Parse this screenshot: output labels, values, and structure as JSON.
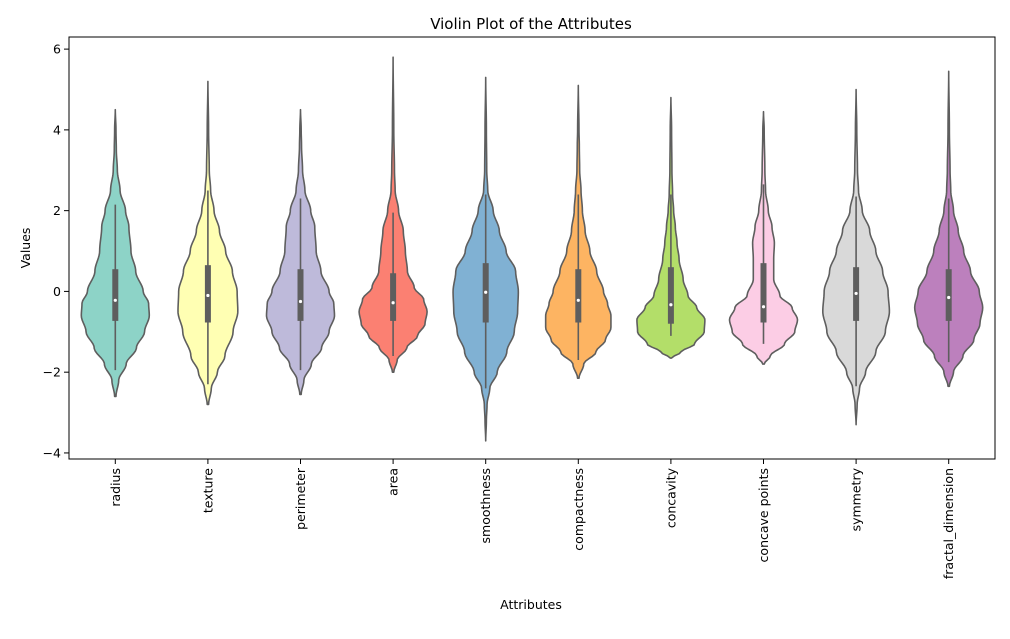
{
  "chart_data": {
    "type": "violin",
    "title": "Violin Plot of the Attributes",
    "xlabel": "Attributes",
    "ylabel": "Values",
    "ylim": [
      -4.15,
      6.3
    ],
    "yticks": [
      -4,
      -2,
      0,
      2,
      4,
      6
    ],
    "grid": false,
    "legend": "none",
    "edge_color": "#5e5e5e",
    "categories": [
      "radius",
      "texture",
      "perimeter",
      "area",
      "smoothness",
      "compactness",
      "concavity",
      "concave points",
      "symmetry",
      "fractal_dimension"
    ],
    "colors": [
      "#8dd3c7",
      "#ffffb3",
      "#bebada",
      "#fb8072",
      "#80b1d3",
      "#fdb462",
      "#b3de69",
      "#fccde5",
      "#d9d9d9",
      "#bc80bd"
    ],
    "series": [
      {
        "min": -2.6,
        "q1": -0.73,
        "median": -0.22,
        "q3": 0.55,
        "max": 4.5,
        "whisker_low": -1.95,
        "whisker_high": 2.15,
        "profile": [
          [
            -2.6,
            0.02
          ],
          [
            -2.2,
            0.1
          ],
          [
            -1.8,
            0.32
          ],
          [
            -1.4,
            0.62
          ],
          [
            -1.0,
            0.86
          ],
          [
            -0.6,
            1.0
          ],
          [
            -0.3,
            0.98
          ],
          [
            0.0,
            0.82
          ],
          [
            0.5,
            0.6
          ],
          [
            1.0,
            0.46
          ],
          [
            1.6,
            0.4
          ],
          [
            2.0,
            0.3
          ],
          [
            2.5,
            0.14
          ],
          [
            3.0,
            0.06
          ],
          [
            3.5,
            0.03
          ],
          [
            4.0,
            0.02
          ],
          [
            4.5,
            0.0
          ]
        ]
      },
      {
        "min": -2.8,
        "q1": -0.77,
        "median": -0.1,
        "q3": 0.65,
        "max": 5.2,
        "whisker_low": -2.3,
        "whisker_high": 2.5,
        "profile": [
          [
            -2.8,
            0.02
          ],
          [
            -2.4,
            0.1
          ],
          [
            -2.0,
            0.28
          ],
          [
            -1.6,
            0.5
          ],
          [
            -1.0,
            0.74
          ],
          [
            -0.5,
            0.88
          ],
          [
            0.0,
            0.86
          ],
          [
            0.5,
            0.72
          ],
          [
            1.0,
            0.52
          ],
          [
            1.5,
            0.34
          ],
          [
            2.0,
            0.18
          ],
          [
            2.5,
            0.08
          ],
          [
            3.0,
            0.04
          ],
          [
            4.0,
            0.02
          ],
          [
            5.2,
            0.0
          ]
        ]
      },
      {
        "min": -2.55,
        "q1": -0.73,
        "median": -0.25,
        "q3": 0.55,
        "max": 4.5,
        "whisker_low": -1.95,
        "whisker_high": 2.3,
        "profile": [
          [
            -2.55,
            0.02
          ],
          [
            -2.2,
            0.1
          ],
          [
            -1.8,
            0.32
          ],
          [
            -1.4,
            0.62
          ],
          [
            -1.0,
            0.84
          ],
          [
            -0.6,
            1.0
          ],
          [
            -0.3,
            0.98
          ],
          [
            0.0,
            0.84
          ],
          [
            0.5,
            0.6
          ],
          [
            1.0,
            0.46
          ],
          [
            1.6,
            0.42
          ],
          [
            2.0,
            0.3
          ],
          [
            2.5,
            0.13
          ],
          [
            3.0,
            0.06
          ],
          [
            3.6,
            0.03
          ],
          [
            4.0,
            0.02
          ],
          [
            4.5,
            0.0
          ]
        ]
      },
      {
        "min": -2.0,
        "q1": -0.73,
        "median": -0.28,
        "q3": 0.45,
        "max": 5.8,
        "whisker_low": -1.6,
        "whisker_high": 1.95,
        "profile": [
          [
            -2.0,
            0.02
          ],
          [
            -1.7,
            0.12
          ],
          [
            -1.4,
            0.4
          ],
          [
            -1.1,
            0.72
          ],
          [
            -0.8,
            0.94
          ],
          [
            -0.5,
            1.0
          ],
          [
            -0.2,
            0.9
          ],
          [
            0.1,
            0.62
          ],
          [
            0.5,
            0.42
          ],
          [
            1.0,
            0.36
          ],
          [
            1.5,
            0.3
          ],
          [
            2.0,
            0.16
          ],
          [
            2.5,
            0.06
          ],
          [
            3.0,
            0.04
          ],
          [
            4.0,
            0.02
          ],
          [
            5.8,
            0.0
          ]
        ]
      },
      {
        "min": -3.7,
        "q1": -0.77,
        "median": -0.02,
        "q3": 0.7,
        "max": 5.3,
        "whisker_low": -2.4,
        "whisker_high": 2.4,
        "profile": [
          [
            -3.7,
            0.0
          ],
          [
            -3.2,
            0.02
          ],
          [
            -2.8,
            0.04
          ],
          [
            -2.4,
            0.12
          ],
          [
            -2.0,
            0.34
          ],
          [
            -1.5,
            0.62
          ],
          [
            -1.0,
            0.84
          ],
          [
            -0.5,
            0.94
          ],
          [
            0.0,
            0.96
          ],
          [
            0.5,
            0.88
          ],
          [
            1.0,
            0.6
          ],
          [
            1.5,
            0.4
          ],
          [
            2.0,
            0.22
          ],
          [
            2.5,
            0.06
          ],
          [
            3.0,
            0.03
          ],
          [
            4.0,
            0.02
          ],
          [
            5.3,
            0.0
          ]
        ]
      },
      {
        "min": -2.15,
        "q1": -0.77,
        "median": -0.22,
        "q3": 0.55,
        "max": 5.1,
        "whisker_low": -1.7,
        "whisker_high": 2.4,
        "profile": [
          [
            -2.15,
            0.02
          ],
          [
            -1.8,
            0.16
          ],
          [
            -1.5,
            0.52
          ],
          [
            -1.2,
            0.8
          ],
          [
            -0.9,
            0.96
          ],
          [
            -0.6,
            0.96
          ],
          [
            -0.3,
            0.86
          ],
          [
            0.0,
            0.74
          ],
          [
            0.5,
            0.54
          ],
          [
            1.0,
            0.34
          ],
          [
            1.5,
            0.2
          ],
          [
            2.0,
            0.12
          ],
          [
            2.5,
            0.08
          ],
          [
            3.0,
            0.04
          ],
          [
            3.6,
            0.03
          ],
          [
            4.0,
            0.02
          ],
          [
            5.1,
            0.0
          ]
        ]
      },
      {
        "min": -1.65,
        "q1": -0.8,
        "median": -0.33,
        "q3": 0.6,
        "max": 4.8,
        "whisker_low": -1.1,
        "whisker_high": 2.4,
        "profile": [
          [
            -1.65,
            0.02
          ],
          [
            -1.5,
            0.3
          ],
          [
            -1.3,
            0.7
          ],
          [
            -1.0,
            0.98
          ],
          [
            -0.7,
            1.0
          ],
          [
            -0.4,
            0.76
          ],
          [
            -0.1,
            0.5
          ],
          [
            0.3,
            0.36
          ],
          [
            0.8,
            0.24
          ],
          [
            1.2,
            0.18
          ],
          [
            1.6,
            0.13
          ],
          [
            2.0,
            0.08
          ],
          [
            2.4,
            0.05
          ],
          [
            3.0,
            0.03
          ],
          [
            4.0,
            0.02
          ],
          [
            4.8,
            0.0
          ]
        ]
      },
      {
        "min": -1.8,
        "q1": -0.77,
        "median": -0.38,
        "q3": 0.7,
        "max": 4.45,
        "whisker_low": -1.3,
        "whisker_high": 2.65,
        "profile": [
          [
            -1.8,
            0.02
          ],
          [
            -1.6,
            0.2
          ],
          [
            -1.3,
            0.62
          ],
          [
            -1.0,
            0.92
          ],
          [
            -0.7,
            1.0
          ],
          [
            -0.4,
            0.84
          ],
          [
            -0.1,
            0.48
          ],
          [
            0.3,
            0.3
          ],
          [
            0.8,
            0.3
          ],
          [
            1.2,
            0.32
          ],
          [
            1.6,
            0.25
          ],
          [
            2.0,
            0.14
          ],
          [
            2.5,
            0.06
          ],
          [
            3.0,
            0.04
          ],
          [
            4.0,
            0.02
          ],
          [
            4.45,
            0.0
          ]
        ]
      },
      {
        "min": -3.3,
        "q1": -0.73,
        "median": -0.05,
        "q3": 0.6,
        "max": 5.0,
        "whisker_low": -2.35,
        "whisker_high": 2.35,
        "profile": [
          [
            -3.3,
            0.0
          ],
          [
            -2.8,
            0.03
          ],
          [
            -2.4,
            0.1
          ],
          [
            -2.0,
            0.28
          ],
          [
            -1.5,
            0.58
          ],
          [
            -1.0,
            0.86
          ],
          [
            -0.5,
            0.98
          ],
          [
            0.0,
            0.94
          ],
          [
            0.5,
            0.78
          ],
          [
            1.0,
            0.58
          ],
          [
            1.5,
            0.4
          ],
          [
            2.0,
            0.18
          ],
          [
            2.5,
            0.07
          ],
          [
            3.0,
            0.04
          ],
          [
            4.0,
            0.02
          ],
          [
            5.0,
            0.0
          ]
        ]
      },
      {
        "min": -2.35,
        "q1": -0.73,
        "median": -0.15,
        "q3": 0.55,
        "max": 5.45,
        "whisker_low": -1.75,
        "whisker_high": 2.3,
        "profile": [
          [
            -2.35,
            0.02
          ],
          [
            -2.0,
            0.14
          ],
          [
            -1.6,
            0.42
          ],
          [
            -1.2,
            0.74
          ],
          [
            -0.8,
            0.92
          ],
          [
            -0.4,
            1.0
          ],
          [
            0.0,
            0.9
          ],
          [
            0.5,
            0.64
          ],
          [
            1.0,
            0.44
          ],
          [
            1.5,
            0.28
          ],
          [
            2.0,
            0.14
          ],
          [
            2.5,
            0.06
          ],
          [
            3.0,
            0.04
          ],
          [
            4.0,
            0.02
          ],
          [
            5.45,
            0.0
          ]
        ]
      }
    ]
  }
}
